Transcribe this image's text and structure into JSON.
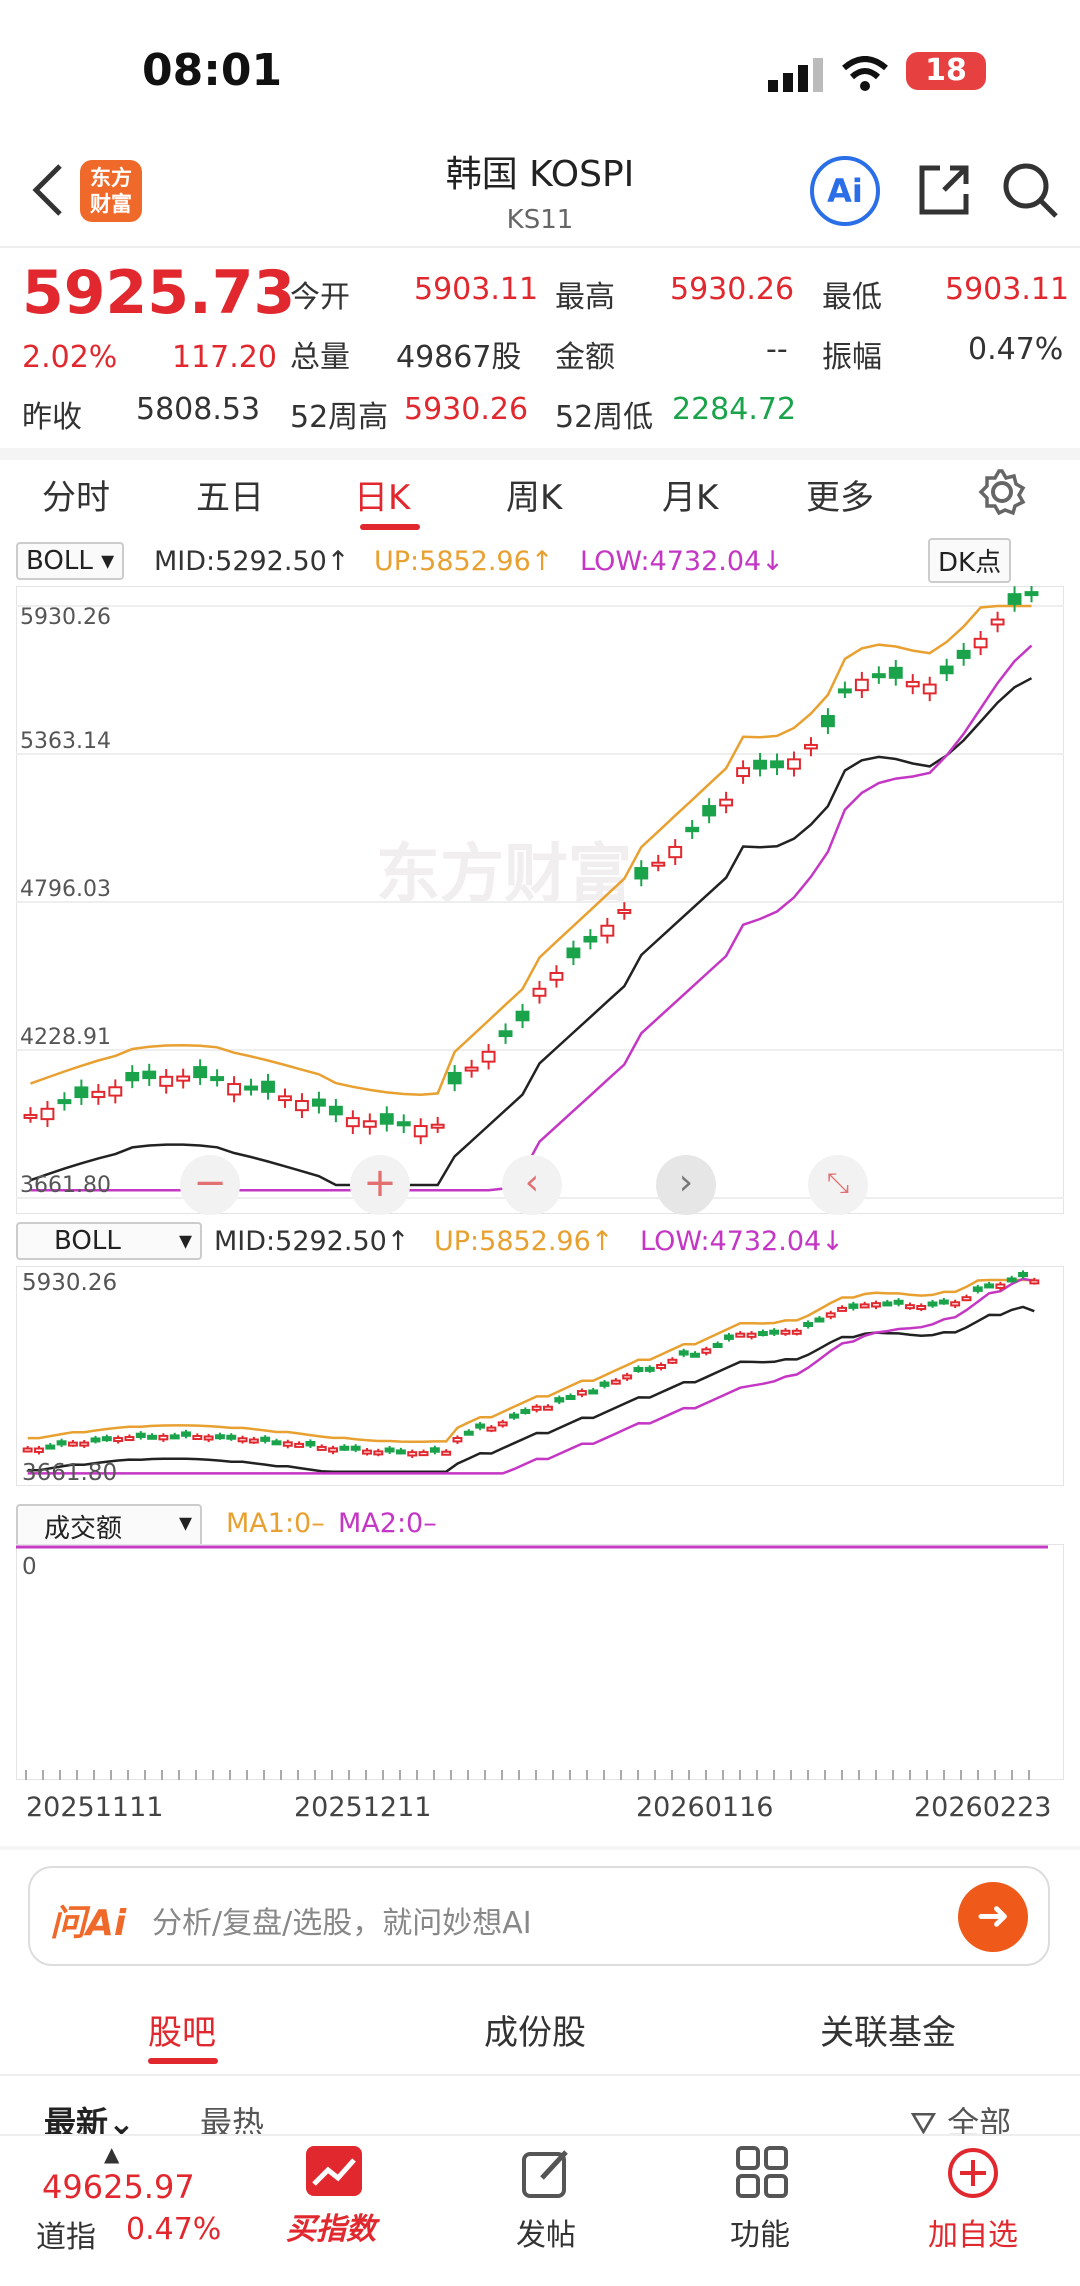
{
  "status": {
    "time": "08:01",
    "battery": "18"
  },
  "header": {
    "logo_text": "东方财富",
    "title": "韩国 KOSPI",
    "code": "KS11",
    "ai": "Ai"
  },
  "quote": {
    "price": "5925.73",
    "pct": "2.02%",
    "change": "117.20",
    "open_label": "今开",
    "open": "5903.11",
    "high_label": "最高",
    "high": "5930.26",
    "low_label": "最低",
    "low": "5903.11",
    "vol_label": "总量",
    "vol": "49867股",
    "amt_label": "金额",
    "amt": "--",
    "amp_label": "振幅",
    "amp": "0.47%",
    "prev_label": "昨收",
    "prev": "5808.53",
    "h52_label": "52周高",
    "h52": "5930.26",
    "l52_label": "52周低",
    "l52": "2284.72"
  },
  "tabs": [
    "分时",
    "五日",
    "日K",
    "周K",
    "月K",
    "更多"
  ],
  "main_chart": {
    "indicator": "BOLL",
    "mid": "MID:5292.50↑",
    "up": "UP:5852.96↑",
    "low": "LOW:4732.04↓",
    "dk": "DK点",
    "y_labels": [
      "5930.26",
      "5363.14",
      "4796.03",
      "4228.91",
      "3661.80"
    ],
    "watermark": "东方财富"
  },
  "mini_chart": {
    "indicator": "BOLL",
    "mid": "MID:5292.50↑",
    "up": "UP:5852.96↑",
    "low": "LOW:4732.04↓",
    "y_top": "5930.26",
    "y_bottom": "3661.80"
  },
  "volume": {
    "indicator": "成交额",
    "ma1": "MA1:0–",
    "ma2": "MA2:0–",
    "zero": "0"
  },
  "x_dates": [
    "20251111",
    "20251211",
    "20260116",
    "20260223"
  ],
  "ai_bar": {
    "logo": "问Ai",
    "placeholder": "分析/复盘/选股，就问妙想AI"
  },
  "sub_tabs": [
    "股吧",
    "成份股",
    "关联基金"
  ],
  "sort": {
    "latest": "最新",
    "hot": "最热",
    "all": "全部"
  },
  "bottom": {
    "index_value": "49625.97",
    "index_name": "道指",
    "index_pct": "0.47%",
    "nav": [
      "买指数",
      "发帖",
      "功能",
      "加自选"
    ]
  },
  "chart_data": {
    "type": "candlestick",
    "x_range": [
      "20251111",
      "20260223"
    ],
    "ylim": [
      3661.8,
      5930.26
    ],
    "series": [
      {
        "name": "MID",
        "last": 5292.5
      },
      {
        "name": "UP",
        "last": 5852.96
      },
      {
        "name": "LOW",
        "last": 4732.04
      }
    ],
    "y_ticks": [
      5930.26,
      5363.14,
      4796.03,
      4228.91,
      3661.8
    ]
  }
}
